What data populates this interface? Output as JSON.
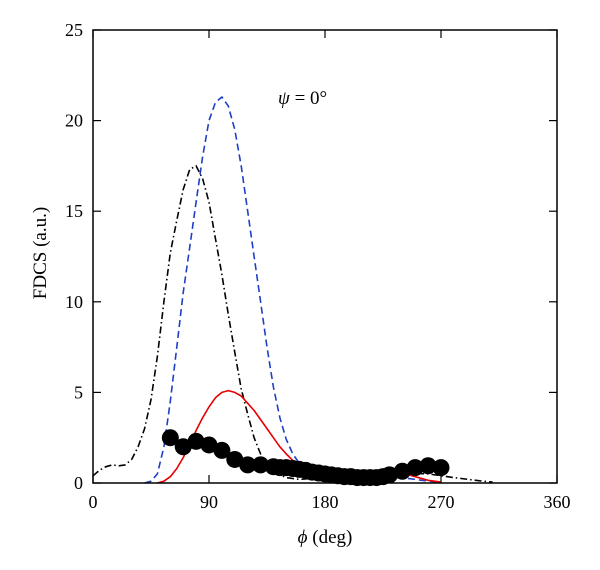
{
  "chart_data": {
    "type": "line",
    "title": "",
    "annotation": {
      "symbol": "ψ",
      "text": " = 0°"
    },
    "xlabel": {
      "symbol": "ϕ",
      "text": " (deg)"
    },
    "ylabel": "FDCS (a.u.)",
    "xlim": [
      0,
      360
    ],
    "ylim": [
      0,
      25
    ],
    "xticks": [
      0,
      90,
      180,
      270,
      360
    ],
    "yticks": [
      0,
      5,
      10,
      15,
      20,
      25
    ],
    "grid": false,
    "series": [
      {
        "style": "dash-dot",
        "color": "#000000",
        "x": [
          0,
          5,
          10,
          15,
          20,
          25,
          30,
          35,
          40,
          45,
          50,
          55,
          60,
          65,
          70,
          75,
          80,
          85,
          90,
          95,
          100,
          105,
          110,
          115,
          120,
          125,
          130,
          135,
          140,
          150,
          160,
          170,
          180,
          200,
          220,
          240,
          260,
          280,
          300,
          310
        ],
        "y": [
          0.4,
          0.7,
          0.9,
          1.0,
          0.95,
          1.0,
          1.3,
          2.0,
          3.0,
          4.6,
          7.0,
          10.0,
          12.7,
          14.5,
          16.2,
          17.3,
          17.5,
          16.8,
          15.5,
          13.5,
          11.5,
          9.3,
          7.2,
          5.2,
          3.8,
          2.5,
          1.6,
          1.0,
          0.6,
          0.3,
          0.2,
          0.25,
          0.3,
          0.45,
          0.6,
          0.55,
          0.5,
          0.3,
          0.12,
          0.05
        ]
      },
      {
        "style": "dashed",
        "color": "#1f3fc7",
        "x": [
          40,
          45,
          50,
          55,
          60,
          65,
          70,
          75,
          80,
          85,
          90,
          95,
          100,
          105,
          110,
          115,
          120,
          125,
          130,
          135,
          140,
          145,
          150,
          155,
          160,
          165,
          170,
          175,
          180,
          190,
          200,
          210,
          220,
          230,
          240,
          250,
          260,
          270
        ],
        "y": [
          0,
          0.1,
          0.5,
          2.0,
          4.5,
          7.5,
          10.5,
          13.0,
          15.5,
          18.0,
          20.0,
          21.0,
          21.3,
          20.8,
          19.5,
          17.5,
          15.0,
          12.5,
          10.0,
          7.5,
          5.3,
          3.6,
          2.4,
          1.6,
          1.1,
          0.8,
          0.6,
          0.45,
          0.35,
          0.25,
          0.2,
          0.2,
          0.25,
          0.3,
          0.3,
          0.2,
          0.1,
          0.05
        ]
      },
      {
        "style": "solid",
        "color": "#e60000",
        "x": [
          50,
          55,
          60,
          65,
          70,
          75,
          80,
          85,
          90,
          95,
          100,
          105,
          110,
          115,
          120,
          125,
          130,
          135,
          140,
          145,
          150,
          155,
          160,
          165,
          170,
          175,
          180,
          190,
          200,
          210,
          220,
          230,
          240,
          250,
          260,
          270
        ],
        "y": [
          0,
          0.1,
          0.35,
          0.8,
          1.4,
          2.1,
          2.9,
          3.6,
          4.2,
          4.7,
          5.0,
          5.1,
          5.0,
          4.8,
          4.4,
          4.0,
          3.5,
          3.0,
          2.5,
          2.0,
          1.6,
          1.25,
          0.95,
          0.7,
          0.55,
          0.45,
          0.35,
          0.3,
          0.3,
          0.4,
          0.55,
          0.6,
          0.55,
          0.35,
          0.15,
          0.05
        ]
      },
      {
        "style": "markers",
        "color": "#000000",
        "x": [
          60,
          70,
          80,
          90,
          100,
          110,
          120,
          130,
          140,
          145,
          150,
          155,
          160,
          165,
          170,
          175,
          180,
          185,
          190,
          195,
          200,
          205,
          210,
          215,
          220,
          225,
          230,
          240,
          250,
          260,
          270
        ],
        "y": [
          2.5,
          2.0,
          2.3,
          2.1,
          1.8,
          1.3,
          1.0,
          1.0,
          0.9,
          0.85,
          0.85,
          0.8,
          0.75,
          0.7,
          0.6,
          0.55,
          0.5,
          0.45,
          0.4,
          0.35,
          0.35,
          0.3,
          0.3,
          0.3,
          0.3,
          0.35,
          0.45,
          0.65,
          0.85,
          0.95,
          0.85
        ]
      }
    ]
  }
}
